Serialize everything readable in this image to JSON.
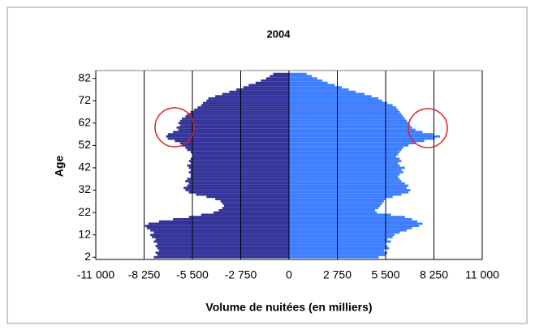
{
  "chart_data": {
    "type": "pyramid",
    "title": "2004",
    "ylabel": "Age",
    "xlabel": "Volume de nuitées (en milliers)",
    "y": [
      2,
      3,
      4,
      5,
      6,
      7,
      8,
      9,
      10,
      11,
      12,
      13,
      14,
      15,
      16,
      17,
      18,
      19,
      20,
      21,
      22,
      23,
      24,
      25,
      26,
      27,
      28,
      29,
      30,
      31,
      32,
      33,
      34,
      35,
      36,
      37,
      38,
      39,
      40,
      41,
      42,
      43,
      44,
      45,
      46,
      47,
      48,
      49,
      50,
      51,
      52,
      53,
      54,
      55,
      56,
      57,
      58,
      59,
      60,
      61,
      62,
      63,
      64,
      65,
      66,
      67,
      68,
      69,
      70,
      71,
      72,
      73,
      74,
      75,
      76,
      77,
      78,
      79,
      80,
      81,
      82,
      83,
      84
    ],
    "series": [
      {
        "color": "#333399",
        "values": [
          -7700,
          -7500,
          -7600,
          -7400,
          -7500,
          -7600,
          -7500,
          -7700,
          -7600,
          -7800,
          -7900,
          -7700,
          -7900,
          -8100,
          -8200,
          -8000,
          -7400,
          -6600,
          -5700,
          -5000,
          -4300,
          -4000,
          -3800,
          -3700,
          -3800,
          -3900,
          -4200,
          -4700,
          -5300,
          -5700,
          -5900,
          -6000,
          -5800,
          -5700,
          -5900,
          -5800,
          -5600,
          -5600,
          -5700,
          -5600,
          -5700,
          -5800,
          -5600,
          -5700,
          -5600,
          -5500,
          -5500,
          -5600,
          -5800,
          -5900,
          -6100,
          -6200,
          -6500,
          -6900,
          -7000,
          -6900,
          -6600,
          -6300,
          -6400,
          -6200,
          -6300,
          -6200,
          -6100,
          -5900,
          -5800,
          -5600,
          -5400,
          -5200,
          -5000,
          -4900,
          -4700,
          -4600,
          -4200,
          -3800,
          -3400,
          -3000,
          -2600,
          -2300,
          -1900,
          -1600,
          -1300,
          -1100,
          -900
        ]
      },
      {
        "color": "#3d7eff",
        "values": [
          5100,
          5500,
          5600,
          5400,
          5700,
          5600,
          5500,
          5800,
          5600,
          5900,
          6000,
          6300,
          6700,
          7000,
          7400,
          7600,
          7300,
          7000,
          6600,
          5800,
          5000,
          4900,
          5100,
          5200,
          5300,
          5400,
          5500,
          5900,
          6400,
          6800,
          6900,
          6700,
          6800,
          6600,
          6400,
          6300,
          6200,
          6300,
          6500,
          6400,
          6600,
          6300,
          6200,
          6400,
          6300,
          6100,
          6200,
          6300,
          6400,
          6500,
          6800,
          7200,
          7700,
          8300,
          8600,
          8200,
          7600,
          7200,
          7000,
          6900,
          6800,
          6700,
          6600,
          6500,
          6400,
          6300,
          6200,
          6100,
          5900,
          5600,
          5300,
          5100,
          4700,
          4300,
          3800,
          3400,
          3000,
          2600,
          2200,
          1900,
          1600,
          1300,
          1000
        ]
      }
    ],
    "xlim": [
      -11000,
      11000
    ],
    "xticks": [
      {
        "value": -11000,
        "label": "-11 000"
      },
      {
        "value": -8250,
        "label": "-8 250"
      },
      {
        "value": -5500,
        "label": "-5 500"
      },
      {
        "value": -2750,
        "label": "-2 750"
      },
      0,
      {
        "value": 2750,
        "label": "2 750"
      },
      {
        "value": 5500,
        "label": "5 500"
      },
      {
        "value": 8250,
        "label": "8 250"
      },
      {
        "value": 11000,
        "label": "11 000"
      }
    ],
    "ylim": [
      1,
      85.5
    ],
    "yticks": [
      2,
      12,
      22,
      32,
      42,
      52,
      62,
      72,
      82
    ],
    "grid": true
  }
}
